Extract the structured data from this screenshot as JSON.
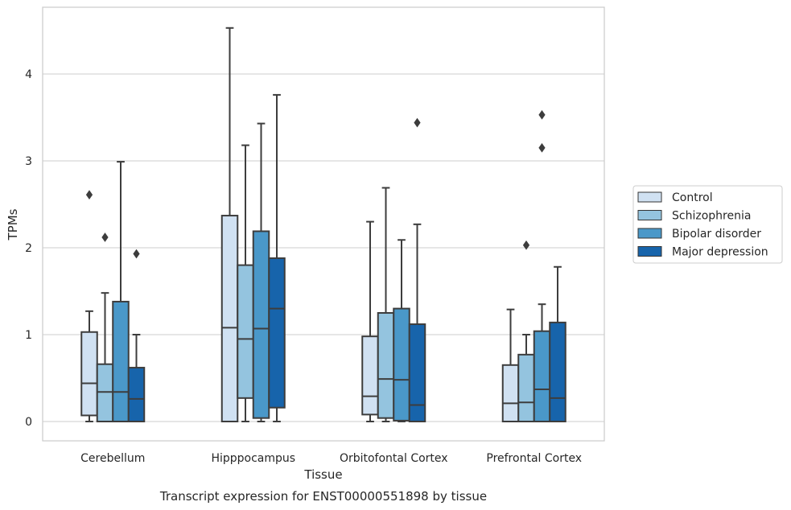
{
  "caption": "Transcript expression for ENST00000551898 by tissue",
  "chart_data": {
    "type": "box",
    "xlabel": "Tissue",
    "ylabel": "TPMs",
    "ylim": [
      -0.22,
      4.77
    ],
    "yticks": [
      0,
      1,
      2,
      3,
      4
    ],
    "grid": "horizontal",
    "legend_position": "right",
    "categories": [
      "Cerebellum",
      "Hipppocampus",
      "Orbitofontal Cortex",
      "Prefrontal Cortex"
    ],
    "series": [
      {
        "name": "Control",
        "color": "#d0e1f2",
        "boxes": [
          {
            "whislo": 0.0,
            "q1": 0.07,
            "med": 0.44,
            "q3": 1.03,
            "whishi": 1.27,
            "fliers": [
              2.61
            ]
          },
          {
            "whislo": 0.0,
            "q1": 0.0,
            "med": 1.08,
            "q3": 2.37,
            "whishi": 4.53,
            "fliers": []
          },
          {
            "whislo": 0.0,
            "q1": 0.08,
            "med": 0.29,
            "q3": 0.98,
            "whishi": 2.3,
            "fliers": []
          },
          {
            "whislo": 0.0,
            "q1": 0.0,
            "med": 0.21,
            "q3": 0.65,
            "whishi": 1.29,
            "fliers": []
          }
        ]
      },
      {
        "name": "Schizophrenia",
        "color": "#94c4df",
        "boxes": [
          {
            "whislo": 0.0,
            "q1": 0.0,
            "med": 0.34,
            "q3": 0.66,
            "whishi": 1.48,
            "fliers": [
              2.12
            ]
          },
          {
            "whislo": 0.0,
            "q1": 0.27,
            "med": 0.95,
            "q3": 1.8,
            "whishi": 3.18,
            "fliers": []
          },
          {
            "whislo": 0.0,
            "q1": 0.04,
            "med": 0.49,
            "q3": 1.25,
            "whishi": 2.69,
            "fliers": []
          },
          {
            "whislo": 0.0,
            "q1": 0.0,
            "med": 0.22,
            "q3": 0.77,
            "whishi": 1.0,
            "fliers": [
              2.03
            ]
          }
        ]
      },
      {
        "name": "Bipolar disorder",
        "color": "#4a98c9",
        "boxes": [
          {
            "whislo": 0.0,
            "q1": 0.0,
            "med": 0.34,
            "q3": 1.38,
            "whishi": 2.99,
            "fliers": []
          },
          {
            "whislo": 0.0,
            "q1": 0.04,
            "med": 1.07,
            "q3": 2.19,
            "whishi": 3.43,
            "fliers": []
          },
          {
            "whislo": 0.0,
            "q1": 0.01,
            "med": 0.48,
            "q3": 1.3,
            "whishi": 2.09,
            "fliers": []
          },
          {
            "whislo": 0.0,
            "q1": 0.0,
            "med": 0.37,
            "q3": 1.04,
            "whishi": 1.35,
            "fliers": [
              3.53,
              3.15
            ]
          }
        ]
      },
      {
        "name": "Major depression",
        "color": "#1764ab",
        "boxes": [
          {
            "whislo": 0.0,
            "q1": 0.0,
            "med": 0.26,
            "q3": 0.62,
            "whishi": 1.0,
            "fliers": [
              1.93
            ]
          },
          {
            "whislo": 0.0,
            "q1": 0.16,
            "med": 1.3,
            "q3": 1.88,
            "whishi": 3.76,
            "fliers": []
          },
          {
            "whislo": 0.0,
            "q1": 0.0,
            "med": 0.19,
            "q3": 1.12,
            "whishi": 2.27,
            "fliers": [
              3.44
            ]
          },
          {
            "whislo": 0.0,
            "q1": 0.0,
            "med": 0.27,
            "q3": 1.14,
            "whishi": 1.78,
            "fliers": []
          }
        ]
      }
    ]
  }
}
